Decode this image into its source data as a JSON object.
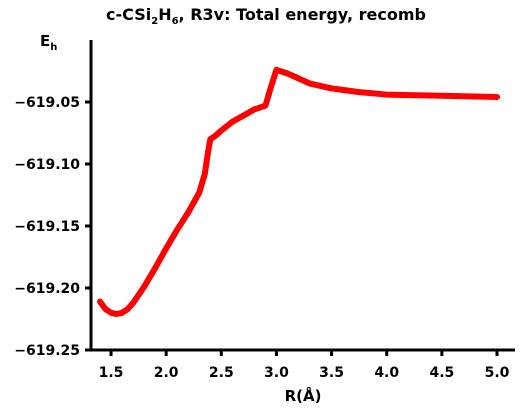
{
  "chart_data": {
    "type": "line",
    "title": {
      "prefix": "c-CSi",
      "sub1": "2",
      "mid": "H",
      "sub2": "6",
      "suffix": ", R3v: Total energy, recomb"
    },
    "xlabel": "R(Å)",
    "ylabel": {
      "main": "E",
      "sub": "h"
    },
    "xlim": [
      1.35,
      5.08
    ],
    "ylim": [
      -619.25,
      -619.0
    ],
    "xticks": [
      1.5,
      2.0,
      2.5,
      3.0,
      3.5,
      4.0,
      4.5,
      5.0
    ],
    "xtick_labels": [
      "1.5",
      "2.0",
      "2.5",
      "3.0",
      "3.5",
      "4.0",
      "4.5",
      "5.0"
    ],
    "yticks": [
      -619.05,
      -619.1,
      -619.15,
      -619.2,
      -619.25
    ],
    "ytick_labels": [
      "−619.05",
      "−619.10",
      "−619.15",
      "−619.20",
      "−619.25"
    ],
    "line_color": "#ff0000",
    "grid": false,
    "series": [
      {
        "x": [
          1.4,
          1.45,
          1.5,
          1.55,
          1.6,
          1.65,
          1.7,
          1.8,
          1.9,
          2.0,
          2.1,
          2.2,
          2.3,
          2.35,
          2.38,
          2.4,
          2.45,
          2.5,
          2.6,
          2.7,
          2.8,
          2.9,
          2.95,
          3.0,
          3.1,
          3.2,
          3.3,
          3.5,
          3.75,
          4.0,
          4.5,
          5.0
        ],
        "y": [
          -619.211,
          -619.217,
          -619.22,
          -619.221,
          -619.22,
          -619.217,
          -619.212,
          -619.199,
          -619.184,
          -619.168,
          -619.153,
          -619.139,
          -619.123,
          -619.108,
          -619.09,
          -619.08,
          -619.077,
          -619.073,
          -619.066,
          -619.061,
          -619.056,
          -619.053,
          -619.038,
          -619.024,
          -619.027,
          -619.031,
          -619.035,
          -619.039,
          -619.042,
          -619.044,
          -619.045,
          -619.046
        ]
      }
    ]
  }
}
